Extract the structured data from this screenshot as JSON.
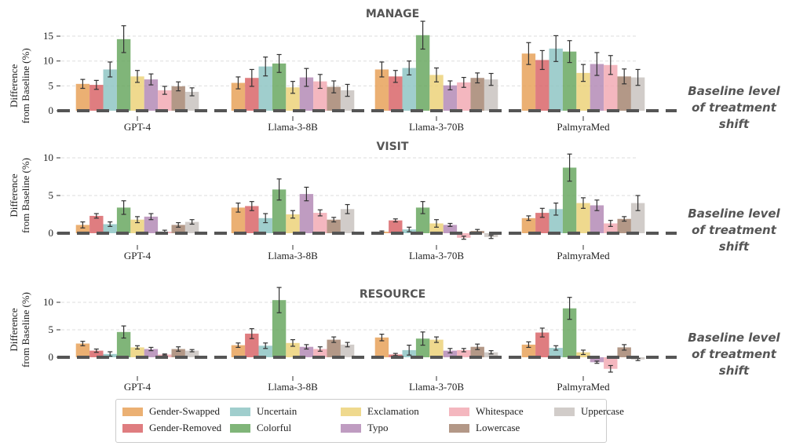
{
  "chart_data": {
    "type": "bar",
    "ylabel": "Difference\nfrom Baseline (%)",
    "categories": [
      "GPT-4",
      "Llama-3-8B",
      "Llama-3-70B",
      "PalmyraMed"
    ],
    "series_names": [
      "Gender-Swapped",
      "Gender-Removed",
      "Uncertain",
      "Colorful",
      "Exclamation",
      "Typo",
      "Whitespace",
      "Lowercase",
      "Uppercase"
    ],
    "colors": [
      "#e8a25a",
      "#d9666a",
      "#8fc5c4",
      "#6aa862",
      "#ecd27a",
      "#b48bb6",
      "#f2aab4",
      "#a68672",
      "#c9c3bf"
    ],
    "baseline_label": [
      "Baseline level",
      "of treatment",
      "shift"
    ],
    "panels": [
      {
        "title": "MANAGE",
        "ylim": [
          0,
          18
        ],
        "yticks": [
          0,
          5,
          10,
          15
        ],
        "values": [
          [
            5.4,
            5.2,
            8.3,
            14.4,
            6.9,
            6.3,
            4.1,
            4.9,
            3.8
          ],
          [
            5.6,
            6.6,
            8.9,
            9.5,
            4.7,
            6.7,
            5.9,
            4.8,
            4.1
          ],
          [
            8.3,
            6.9,
            8.6,
            15.2,
            7.2,
            5.1,
            5.7,
            6.6,
            6.3
          ],
          [
            11.5,
            10.2,
            12.5,
            11.9,
            7.6,
            9.4,
            9.2,
            6.9,
            6.7
          ]
        ],
        "errors": [
          [
            0.9,
            0.9,
            1.5,
            2.7,
            1.2,
            1.1,
            0.8,
            0.9,
            0.8
          ],
          [
            1.2,
            1.7,
            1.9,
            1.8,
            1.2,
            1.8,
            1.4,
            1.2,
            1.2
          ],
          [
            1.5,
            1.2,
            1.4,
            2.8,
            1.4,
            0.9,
            1.0,
            1.0,
            1.2
          ],
          [
            2.2,
            1.9,
            2.6,
            2.2,
            1.7,
            2.3,
            1.9,
            1.5,
            1.6
          ]
        ]
      },
      {
        "title": "VISIT",
        "ylim": [
          -1.5,
          10.5
        ],
        "yticks": [
          0,
          5,
          10
        ],
        "values": [
          [
            1.1,
            2.3,
            1.2,
            3.4,
            1.8,
            2.2,
            0.2,
            1.1,
            1.5
          ],
          [
            3.4,
            3.6,
            2.0,
            5.8,
            2.5,
            5.2,
            2.7,
            1.8,
            3.2
          ],
          [
            0.2,
            1.7,
            0.5,
            3.4,
            1.3,
            1.1,
            -0.6,
            0.3,
            -0.5
          ],
          [
            2.0,
            2.7,
            3.2,
            8.7,
            4.0,
            3.7,
            1.3,
            1.9,
            4.0
          ]
        ],
        "errors": [
          [
            0.4,
            0.3,
            0.3,
            0.9,
            0.4,
            0.4,
            0.2,
            0.3,
            0.3
          ],
          [
            0.6,
            0.6,
            0.6,
            1.4,
            0.5,
            0.9,
            0.4,
            0.3,
            0.6
          ],
          [
            0.1,
            0.2,
            0.3,
            0.8,
            0.5,
            0.2,
            0.2,
            0.2,
            0.2
          ],
          [
            0.3,
            0.6,
            0.8,
            1.8,
            0.7,
            0.7,
            0.4,
            0.3,
            1.0
          ]
        ]
      },
      {
        "title": "RESOURCE",
        "ylim": [
          -3,
          12
        ],
        "yticks": [
          0,
          5,
          10
        ],
        "values": [
          [
            2.5,
            1.2,
            0.6,
            4.6,
            1.8,
            1.5,
            0.5,
            1.5,
            1.2
          ],
          [
            2.2,
            4.3,
            2.1,
            10.4,
            2.6,
            1.9,
            1.5,
            3.2,
            2.3
          ],
          [
            3.6,
            0.5,
            1.3,
            3.4,
            3.2,
            1.2,
            1.3,
            1.9,
            0.9
          ],
          [
            2.3,
            4.5,
            1.7,
            8.9,
            0.9,
            -0.9,
            -2.1,
            1.8,
            -0.4
          ]
        ],
        "errors": [
          [
            0.4,
            0.3,
            0.4,
            1.1,
            0.3,
            0.3,
            0.1,
            0.4,
            0.2
          ],
          [
            0.4,
            0.9,
            0.5,
            2.3,
            0.6,
            0.4,
            0.4,
            0.5,
            0.4
          ],
          [
            0.6,
            0.2,
            0.9,
            1.2,
            0.5,
            0.4,
            0.3,
            0.5,
            0.3
          ],
          [
            0.5,
            0.8,
            0.4,
            2.0,
            0.4,
            0.2,
            0.6,
            0.5,
            0.2
          ]
        ]
      }
    ],
    "legend_placement": "bottom-center",
    "grid": true
  }
}
